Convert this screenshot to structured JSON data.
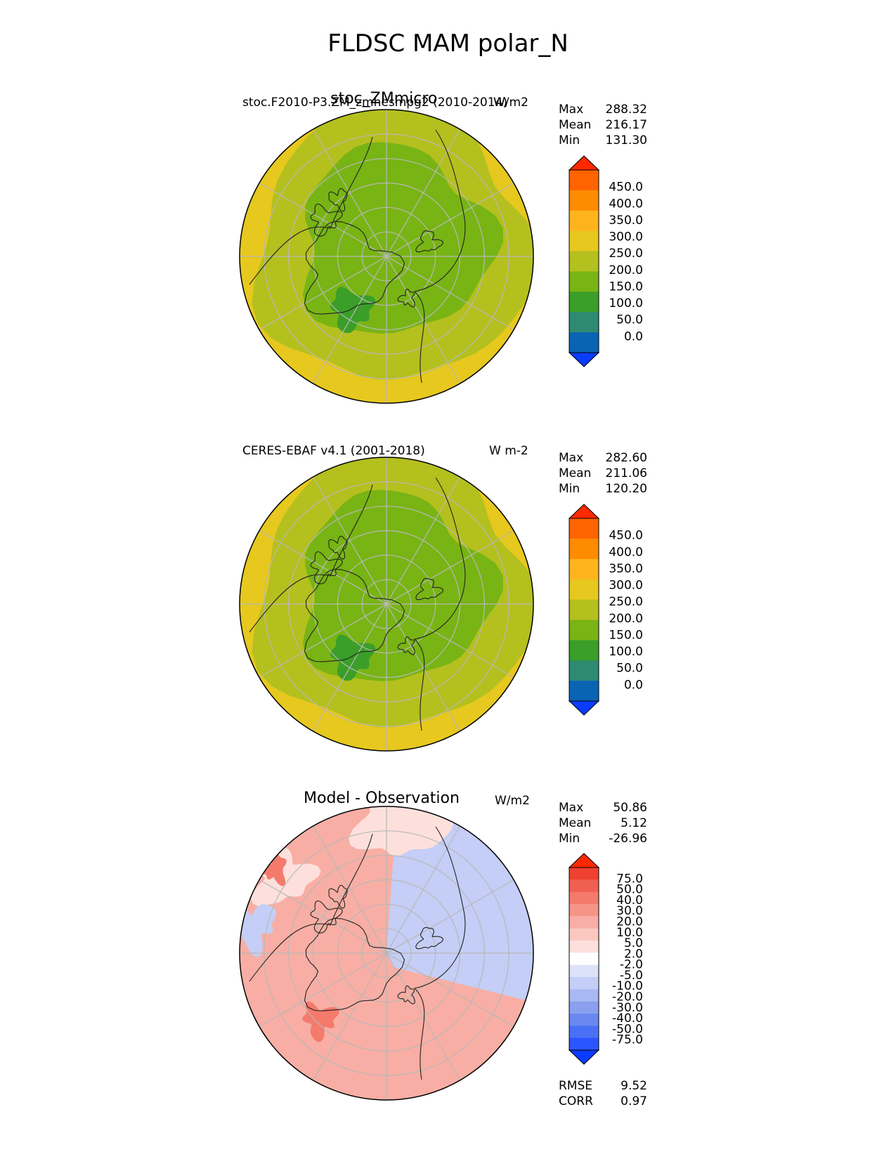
{
  "title": "FLDSC MAM polar_N",
  "stats_labels": {
    "max": "Max",
    "mean": "Mean",
    "min": "Min",
    "rmse": "RMSE",
    "corr": "CORR"
  },
  "panels": [
    {
      "title_center": "stoc_ZMmicro",
      "title_left": "stoc.F2010-P3.ZM_zmhesmpg2 (2010-2014)",
      "units": "W/m2",
      "stats": {
        "max": "288.32",
        "mean": "216.17",
        "min": "131.30"
      },
      "colorbar_ticks": [
        "450.0",
        "400.0",
        "350.0",
        "300.0",
        "250.0",
        "200.0",
        "150.0",
        "100.0",
        "50.0",
        "0.0"
      ]
    },
    {
      "title_center": "",
      "title_left": "CERES-EBAF v4.1 (2001-2018)",
      "units": "W m-2",
      "stats": {
        "max": "282.60",
        "mean": "211.06",
        "min": "120.20"
      },
      "colorbar_ticks": [
        "450.0",
        "400.0",
        "350.0",
        "300.0",
        "250.0",
        "200.0",
        "150.0",
        "100.0",
        "50.0",
        "0.0"
      ]
    },
    {
      "title_center": "Model - Observation",
      "title_left": "",
      "units": "W/m2",
      "stats": {
        "max": "50.86",
        "mean": "5.12",
        "min": "-26.96",
        "rmse": "9.52",
        "corr": "0.97"
      },
      "colorbar_ticks": [
        "75.0",
        "50.0",
        "40.0",
        "30.0",
        "20.0",
        "10.0",
        "5.0",
        "2.0",
        "-2.0",
        "-5.0",
        "-10.0",
        "-20.0",
        "-30.0",
        "-40.0",
        "-50.0",
        "-75.0"
      ]
    }
  ],
  "colors": {
    "abs_scale": [
      "#0a3cff",
      "#0a64b4",
      "#2e8a70",
      "#3a9e28",
      "#78b414",
      "#b4c01e",
      "#e6c81e",
      "#ffb41e",
      "#ff8c00",
      "#ff6400",
      "#ff2800"
    ],
    "diff_scale": [
      "#0a3cff",
      "#2a55ff",
      "#4a70f5",
      "#6a88f0",
      "#8aa0ef",
      "#a8b8f2",
      "#c4cef6",
      "#dce2fa",
      "#ffffff",
      "#fde0dc",
      "#fbc8c0",
      "#f8aea4",
      "#f69488",
      "#f47a6c",
      "#f06050",
      "#f04030",
      "#ff2800"
    ],
    "map_inner": "#78b414",
    "map_mid": "#b4c01e",
    "map_outer": "#e6c81e",
    "map_dark": "#3a9e28",
    "diff_pos": "#f8aea4",
    "diff_pos_strong": "#f47a6c",
    "diff_neg": "#c4cef6",
    "diff_light": "#fde0dc"
  }
}
